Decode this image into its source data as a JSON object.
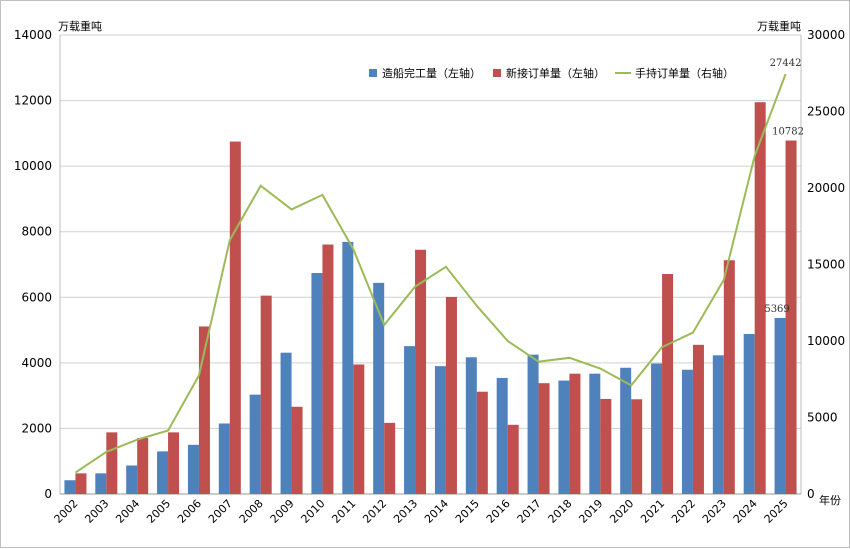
{
  "chart_data": {
    "type": "bar",
    "categories": [
      "2002",
      "2003",
      "2004",
      "2005",
      "2006",
      "2007",
      "2008",
      "2009",
      "2010",
      "2011",
      "2012",
      "2013",
      "2014",
      "2015",
      "2016",
      "2017",
      "2018",
      "2019",
      "2020",
      "2021",
      "2022",
      "2023",
      "2024",
      "2025"
    ],
    "left_unit": "万载重吨",
    "right_unit": "万载重吨",
    "x_unit": "年份",
    "ylim_left": [
      0,
      14000
    ],
    "yticks_left": [
      0,
      2000,
      4000,
      6000,
      8000,
      10000,
      12000,
      14000
    ],
    "ylim_right": [
      0,
      30000
    ],
    "yticks_right": [
      0,
      5000,
      10000,
      15000,
      20000,
      25000,
      30000
    ],
    "grid": true,
    "legend_position": "top-right",
    "series": [
      {
        "name": "造船完工量（左轴）",
        "type": "bar",
        "axis": "left",
        "color": "#4f81bd",
        "values": [
          420,
          630,
          870,
          1300,
          1500,
          2150,
          3030,
          4310,
          6740,
          7690,
          6440,
          4510,
          3900,
          4170,
          3540,
          4250,
          3460,
          3670,
          3850,
          3980,
          3790,
          4230,
          4880,
          5369
        ]
      },
      {
        "name": "新接订单量（左轴）",
        "type": "bar",
        "axis": "left",
        "color": "#c0504d",
        "values": [
          630,
          1880,
          1710,
          1880,
          5110,
          10750,
          6050,
          2660,
          7610,
          3950,
          2170,
          7450,
          6010,
          3120,
          2110,
          3380,
          3670,
          2900,
          2890,
          6710,
          4550,
          7130,
          11950,
          10782
        ]
      },
      {
        "name": "手持订单量（右轴）",
        "type": "line",
        "axis": "right",
        "color": "#9bbb59",
        "values": [
          1400,
          2750,
          3550,
          4150,
          7750,
          16600,
          20150,
          18600,
          19550,
          16000,
          11050,
          13550,
          14850,
          12300,
          10000,
          8650,
          8900,
          8200,
          7100,
          9600,
          10550,
          14000,
          22100,
          27442
        ]
      }
    ],
    "data_labels": [
      {
        "series": 0,
        "index": 23,
        "text": "5369"
      },
      {
        "series": 1,
        "index": 23,
        "text": "10782"
      },
      {
        "series": 2,
        "index": 23,
        "text": "27442"
      }
    ]
  }
}
